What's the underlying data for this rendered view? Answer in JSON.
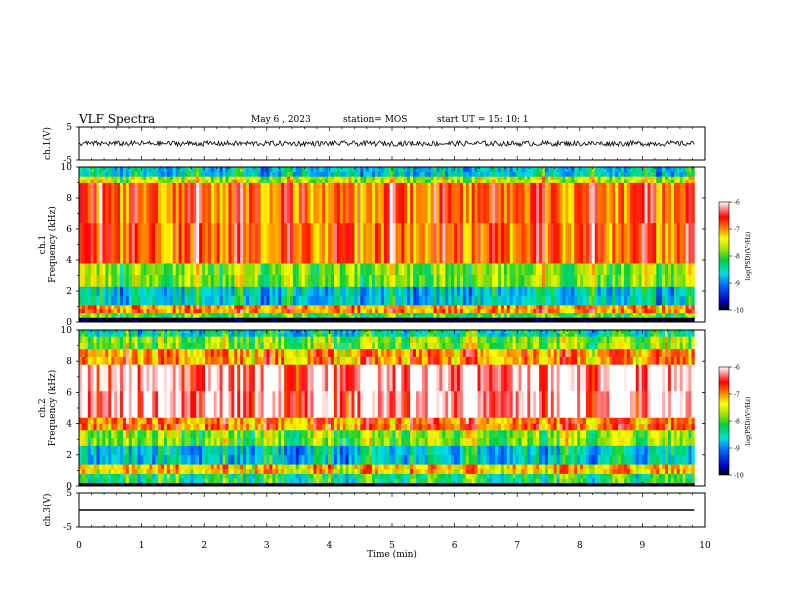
{
  "header": {
    "title": "VLF Spectra",
    "date": "May 6  , 2023",
    "station": "station= MOS",
    "start": "start  UT  =   15: 10: 1"
  },
  "chart_data": [
    {
      "type": "line",
      "name": "ch1-waveform",
      "ylabel": "ch.1(V)",
      "xlim": [
        0,
        10
      ],
      "ylim": [
        -5,
        5
      ],
      "yticks": [
        "5",
        "-5"
      ],
      "x": [
        0,
        9.83
      ],
      "y_level": 0,
      "note_trace": "noisy trace"
    },
    {
      "type": "heatmap",
      "name": "ch1-spectrogram",
      "ylabel": "ch.1\nFrequency (kHz)",
      "xlim": [
        0,
        9.83
      ],
      "ylim": [
        0,
        10
      ],
      "yticks": [
        "0",
        "2",
        "4",
        "6",
        "8",
        "10"
      ],
      "colorbar": {
        "label": "log(PSD)(V²/Hz)",
        "min": -10,
        "max": -6,
        "ticks": [
          "-6",
          "-7",
          "-8",
          "-9",
          "-10"
        ]
      },
      "bands_khz_logpsd": [
        [
          0.0,
          0.3,
          -10
        ],
        [
          0.3,
          0.6,
          -8
        ],
        [
          0.6,
          1.1,
          -7
        ],
        [
          1.1,
          2.3,
          -8.6
        ],
        [
          2.3,
          3.8,
          -7.8
        ],
        [
          3.8,
          9.0,
          -6.8
        ],
        [
          9.0,
          9.4,
          -7.6
        ],
        [
          9.4,
          10.0,
          -8.6
        ]
      ]
    },
    {
      "type": "heatmap",
      "name": "ch2-spectrogram",
      "ylabel": "ch.2\nFrequency (kHz)",
      "xlim": [
        0,
        9.83
      ],
      "ylim": [
        0,
        10
      ],
      "yticks": [
        "0",
        "2",
        "4",
        "6",
        "8",
        "10"
      ],
      "colorbar": {
        "label": "log(PSD)(V²/Hz)",
        "min": -10,
        "max": -6,
        "ticks": [
          "-6",
          "-7",
          "-8",
          "-9",
          "-10"
        ]
      },
      "bands_khz_logpsd": [
        [
          0.0,
          0.2,
          -10
        ],
        [
          0.2,
          0.8,
          -8.2
        ],
        [
          0.8,
          1.4,
          -7.2
        ],
        [
          1.4,
          2.6,
          -8.6
        ],
        [
          2.6,
          3.6,
          -7.8
        ],
        [
          3.6,
          4.4,
          -6.9
        ],
        [
          4.4,
          7.8,
          -6.1
        ],
        [
          7.8,
          8.8,
          -7.0
        ],
        [
          8.8,
          9.6,
          -7.8
        ],
        [
          9.6,
          10.0,
          -8.4
        ]
      ]
    },
    {
      "type": "line",
      "name": "ch3-waveform",
      "ylabel": "ch.3(V)",
      "xlim": [
        0,
        10
      ],
      "ylim": [
        -5,
        5
      ],
      "yticks": [
        "5",
        "-5"
      ],
      "x": [
        0,
        9.83
      ],
      "y_level": 0
    }
  ],
  "xaxis": {
    "label": "Time  (min)",
    "range": [
      0,
      10
    ],
    "ticks": [
      "0",
      "1",
      "2",
      "3",
      "4",
      "5",
      "6",
      "7",
      "8",
      "9",
      "10"
    ]
  }
}
